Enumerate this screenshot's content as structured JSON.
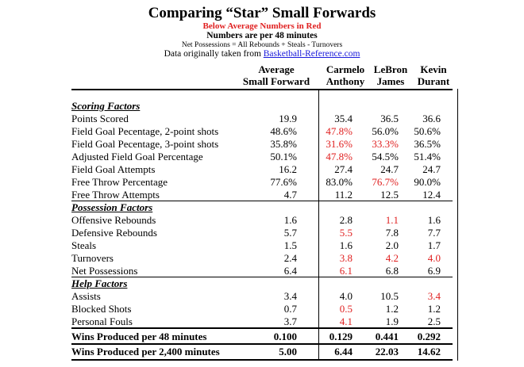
{
  "title": "Comparing “Star” Small Forwards",
  "subtitle_red": "Below Average Numbers in Red",
  "subtitle_per": "Numbers are per 48 minutes",
  "net_note": "Net Possessions = All Rebounds + Steals - Turnovers",
  "source_prefix": "Data originally taken from ",
  "source_link": "Basketball-Reference.com",
  "columns": [
    {
      "line1": "Average",
      "line2": "Small Forward"
    },
    {
      "line1": "Carmelo",
      "line2": "Anthony"
    },
    {
      "line1": "LeBron",
      "line2": "James"
    },
    {
      "line1": "Kevin",
      "line2": "Durant"
    }
  ],
  "colors": {
    "below_average": "#e02020",
    "link": "#1a1adb"
  },
  "rows": [
    {
      "type": "section",
      "label": "Scoring Factors"
    },
    {
      "type": "data",
      "label": "Points Scored",
      "values": [
        "19.9",
        "35.4",
        "36.5",
        "36.6"
      ],
      "red": [
        false,
        false,
        false,
        false
      ]
    },
    {
      "type": "data",
      "label": "Field Goal Pecentage, 2-point shots",
      "values": [
        "48.6%",
        "47.8%",
        "56.0%",
        "50.6%"
      ],
      "red": [
        false,
        true,
        false,
        false
      ]
    },
    {
      "type": "data",
      "label": "Field Goal Pecentage, 3-point shots",
      "values": [
        "35.8%",
        "31.6%",
        "33.3%",
        "36.5%"
      ],
      "red": [
        false,
        true,
        true,
        false
      ]
    },
    {
      "type": "data",
      "label": "Adjusted Field Goal Percentage",
      "values": [
        "50.1%",
        "47.8%",
        "54.5%",
        "51.4%"
      ],
      "red": [
        false,
        true,
        false,
        false
      ]
    },
    {
      "type": "data",
      "label": "Field Goal Attempts",
      "values": [
        "16.2",
        "27.4",
        "24.7",
        "24.7"
      ],
      "red": [
        false,
        false,
        false,
        false
      ]
    },
    {
      "type": "data",
      "label": "Free Throw Percentage",
      "values": [
        "77.6%",
        "83.0%",
        "76.7%",
        "90.0%"
      ],
      "red": [
        false,
        false,
        true,
        false
      ]
    },
    {
      "type": "data",
      "label": "Free Throw Attempts",
      "values": [
        "4.7",
        "11.2",
        "12.5",
        "12.4"
      ],
      "red": [
        false,
        false,
        false,
        false
      ]
    },
    {
      "type": "section",
      "label": "Possession Factors"
    },
    {
      "type": "data",
      "label": "Offensive Rebounds",
      "values": [
        "1.6",
        "2.8",
        "1.1",
        "1.6"
      ],
      "red": [
        false,
        false,
        true,
        false
      ]
    },
    {
      "type": "data",
      "label": "Defensive Rebounds",
      "values": [
        "5.7",
        "5.5",
        "7.8",
        "7.7"
      ],
      "red": [
        false,
        true,
        false,
        false
      ]
    },
    {
      "type": "data",
      "label": "Steals",
      "values": [
        "1.5",
        "1.6",
        "2.0",
        "1.7"
      ],
      "red": [
        false,
        false,
        false,
        false
      ]
    },
    {
      "type": "data",
      "label": "Turnovers",
      "values": [
        "2.4",
        "3.8",
        "4.2",
        "4.0"
      ],
      "red": [
        false,
        true,
        true,
        true
      ]
    },
    {
      "type": "data",
      "label": "Net Possessions",
      "values": [
        "6.4",
        "6.1",
        "6.8",
        "6.9"
      ],
      "red": [
        false,
        true,
        false,
        false
      ]
    },
    {
      "type": "section",
      "label": "Help Factors"
    },
    {
      "type": "data",
      "label": "Assists",
      "values": [
        "3.4",
        "4.0",
        "10.5",
        "3.4"
      ],
      "red": [
        false,
        false,
        false,
        true
      ]
    },
    {
      "type": "data",
      "label": "Blocked Shots",
      "values": [
        "0.7",
        "0.5",
        "1.2",
        "1.2"
      ],
      "red": [
        false,
        true,
        false,
        false
      ]
    },
    {
      "type": "data",
      "label": "Personal Fouls",
      "values": [
        "3.7",
        "4.1",
        "1.9",
        "2.5"
      ],
      "red": [
        false,
        true,
        false,
        false
      ]
    },
    {
      "type": "total",
      "label": "Wins Produced per 48 minutes",
      "values": [
        "0.100",
        "0.129",
        "0.441",
        "0.292"
      ],
      "red": [
        false,
        false,
        false,
        false
      ]
    },
    {
      "type": "total",
      "label": "Wins Produced per 2,400 minutes",
      "values": [
        "5.00",
        "6.44",
        "22.03",
        "14.62"
      ],
      "red": [
        false,
        false,
        false,
        false
      ]
    }
  ]
}
